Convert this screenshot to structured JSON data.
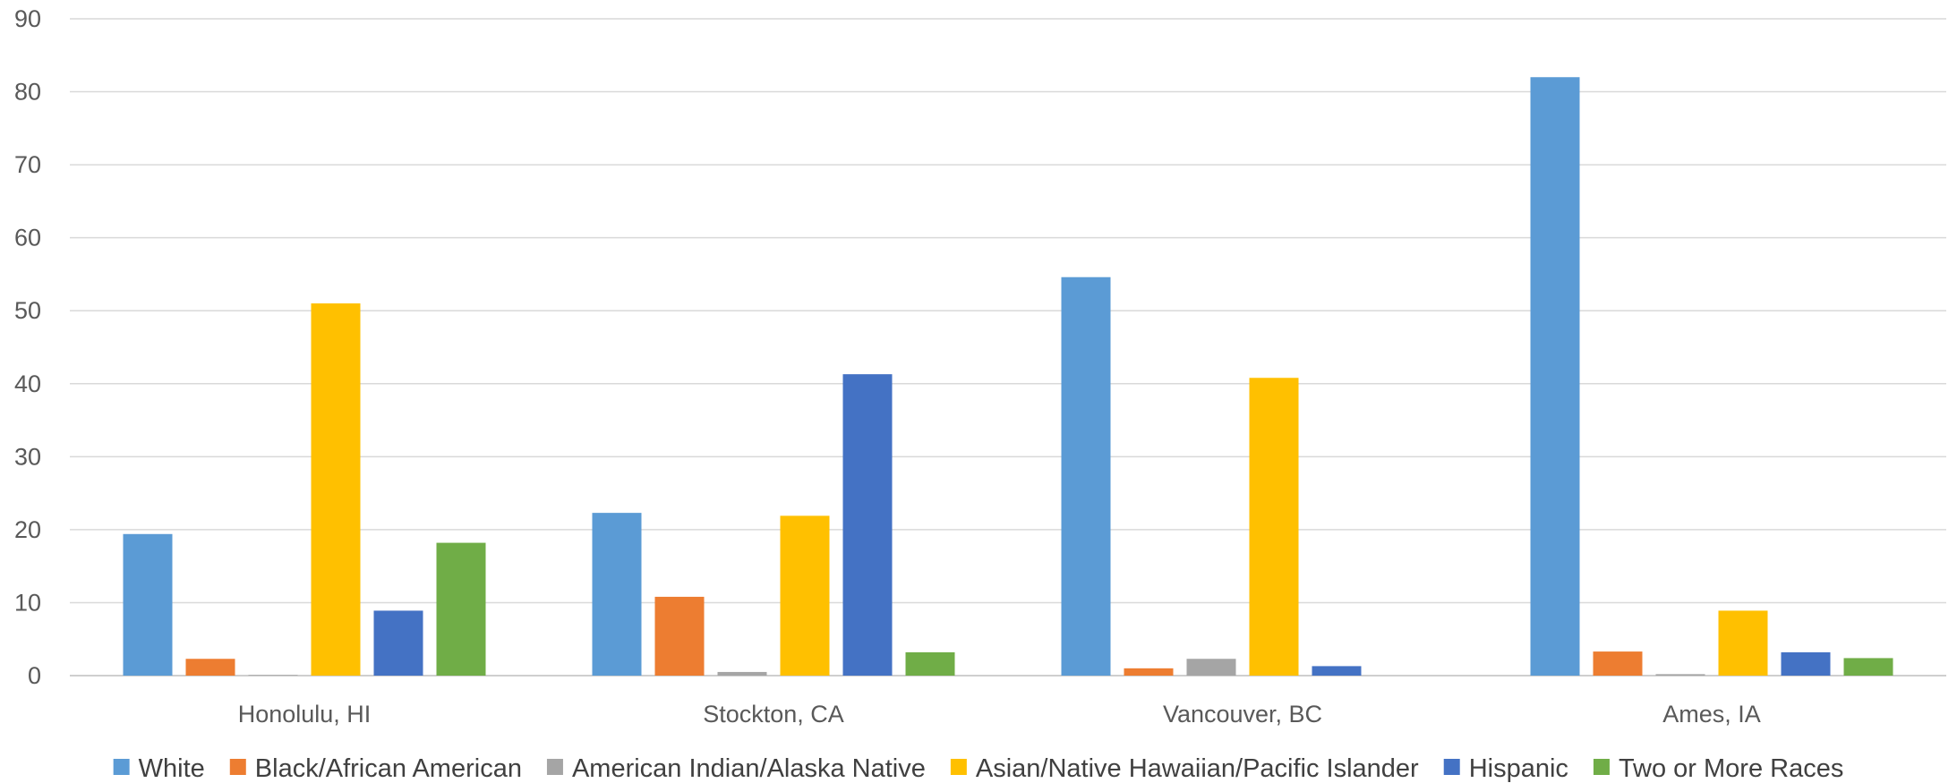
{
  "chart_data": {
    "type": "bar",
    "title": "",
    "xlabel": "",
    "ylabel": "",
    "ylim": [
      0,
      90
    ],
    "yticks": [
      0,
      10,
      20,
      30,
      40,
      50,
      60,
      70,
      80,
      90
    ],
    "grid": true,
    "legend_position": "bottom",
    "categories": [
      "Honolulu, HI",
      "Stockton, CA",
      "Vancouver, BC",
      "Ames, IA"
    ],
    "series": [
      {
        "name": "White",
        "color": "#5B9BD5",
        "values": [
          19.4,
          22.3,
          54.6,
          82.0
        ]
      },
      {
        "name": "Black/African American",
        "color": "#ED7D31",
        "values": [
          2.3,
          10.8,
          1.0,
          3.3
        ]
      },
      {
        "name": "American Indian/Alaska Native",
        "color": "#A5A5A5",
        "values": [
          0.1,
          0.5,
          2.3,
          0.2
        ]
      },
      {
        "name": "Asian/Native Hawaiian/Pacific Islander",
        "color": "#FFC000",
        "values": [
          51.0,
          21.9,
          40.8,
          8.9
        ]
      },
      {
        "name": "Hispanic",
        "color": "#4472C4",
        "values": [
          8.9,
          41.3,
          1.3,
          3.2
        ]
      },
      {
        "name": "Two or More Races",
        "color": "#70AD47",
        "values": [
          18.2,
          3.2,
          0,
          2.4
        ]
      }
    ]
  }
}
